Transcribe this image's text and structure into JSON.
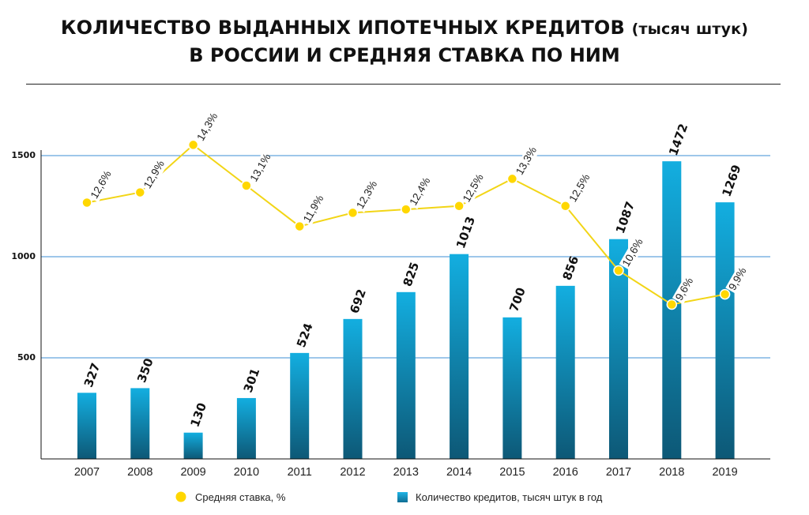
{
  "page": {
    "title_main": "КОЛИЧЕСТВО ВЫДАННЫХ ИПОТЕЧНЫХ КРЕДИТОВ",
    "title_paren": "(тысяч штук)",
    "title_line2": "В РОССИИ И СРЕДНЯЯ СТАВКА ПО НИМ"
  },
  "chart_data": {
    "type": "bar",
    "title": "КОЛИЧЕСТВО ВЫДАННЫХ ИПОТЕЧНЫХ КРЕДИТОВ (тысяч штук) В РОССИИ И СРЕДНЯЯ СТАВКА ПО НИМ",
    "categories": [
      "2007",
      "2008",
      "2009",
      "2010",
      "2011",
      "2012",
      "2013",
      "2014",
      "2015",
      "2016",
      "2017",
      "2018",
      "2019"
    ],
    "series": [
      {
        "name": "Количество кредитов, тысяч штук в год",
        "type": "bar",
        "values": [
          327,
          350,
          130,
          301,
          524,
          692,
          825,
          1013,
          700,
          856,
          1087,
          1472,
          1269
        ],
        "color": "#1a86aa"
      },
      {
        "name": "Средняя ставка, %",
        "type": "line",
        "values": [
          12.6,
          12.9,
          14.3,
          13.1,
          11.9,
          12.3,
          12.4,
          12.5,
          13.3,
          12.5,
          10.6,
          9.6,
          9.9
        ],
        "labels": [
          "12,6%",
          "12,9%",
          "14,3%",
          "13,1%",
          "11,9%",
          "12,3%",
          "12,4%",
          "12,5%",
          "13,3%",
          "12,5%",
          "10,6%",
          "9,6%",
          "9,9%"
        ],
        "color": "#ffd700"
      }
    ],
    "ylim": [
      0,
      1500
    ],
    "yticks": [
      500,
      1000,
      1500
    ],
    "grid": true,
    "legend": "bottom"
  }
}
